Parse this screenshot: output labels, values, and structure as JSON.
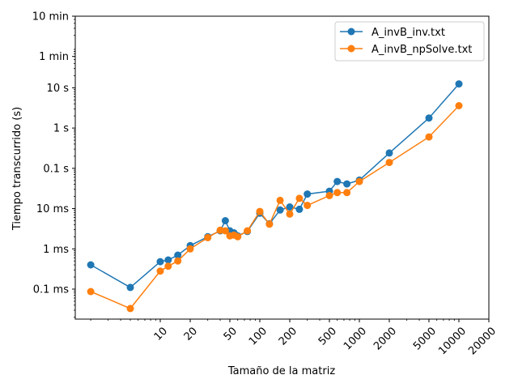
{
  "chart_data": {
    "type": "line",
    "title": "",
    "xlabel": "Tamaño de la matriz",
    "ylabel": "Tiempo transcurrido (s)",
    "x_scale": "log",
    "y_scale": "log",
    "xlim": [
      1.4,
      20000
    ],
    "ylim": [
      1.8e-05,
      600
    ],
    "x_ticks": [
      {
        "value": 10,
        "label": "10"
      },
      {
        "value": 20,
        "label": "20"
      },
      {
        "value": 50,
        "label": "50"
      },
      {
        "value": 100,
        "label": "100"
      },
      {
        "value": 200,
        "label": "200"
      },
      {
        "value": 500,
        "label": "500"
      },
      {
        "value": 1000,
        "label": "1000"
      },
      {
        "value": 2000,
        "label": "2000"
      },
      {
        "value": 5000,
        "label": "5000"
      },
      {
        "value": 10000,
        "label": "10000"
      },
      {
        "value": 20000,
        "label": "20000"
      }
    ],
    "y_ticks": [
      {
        "value": 0.0001,
        "label": "0.1 ms"
      },
      {
        "value": 0.001,
        "label": "1 ms"
      },
      {
        "value": 0.01,
        "label": "10 ms"
      },
      {
        "value": 0.1,
        "label": "0.1 s"
      },
      {
        "value": 1,
        "label": "1 s"
      },
      {
        "value": 10,
        "label": "10 s"
      },
      {
        "value": 60,
        "label": "1 min"
      },
      {
        "value": 600,
        "label": "10 min"
      }
    ],
    "grid": false,
    "legend_position": "top-right",
    "series": [
      {
        "name": "A_invB_inv.txt",
        "color": "#1f77b4",
        "x": [
          2,
          5,
          10,
          12,
          15,
          20,
          30,
          40,
          45,
          50,
          55,
          60,
          75,
          100,
          125,
          160,
          200,
          250,
          300,
          500,
          600,
          750,
          1000,
          2000,
          5000,
          10000
        ],
        "y": [
          0.0004,
          0.00011,
          0.00048,
          0.00053,
          0.0007,
          0.0012,
          0.002,
          0.0028,
          0.005,
          0.0028,
          0.0025,
          0.0021,
          0.0027,
          0.0077,
          0.0042,
          0.0092,
          0.011,
          0.0096,
          0.023,
          0.027,
          0.047,
          0.041,
          0.051,
          0.24,
          1.78,
          12.5
        ]
      },
      {
        "name": "A_invB_npSolve.txt",
        "color": "#ff7f0e",
        "x": [
          2,
          5,
          10,
          12,
          15,
          20,
          30,
          40,
          45,
          50,
          55,
          60,
          75,
          100,
          125,
          160,
          200,
          250,
          300,
          500,
          600,
          750,
          1000,
          2000,
          5000,
          10000
        ],
        "y": [
          8.7e-05,
          3.3e-05,
          0.00028,
          0.00037,
          0.0005,
          0.001,
          0.0019,
          0.0029,
          0.0028,
          0.0021,
          0.0022,
          0.002,
          0.0028,
          0.0085,
          0.0041,
          0.016,
          0.0073,
          0.018,
          0.012,
          0.021,
          0.025,
          0.025,
          0.047,
          0.14,
          0.6,
          3.6
        ]
      }
    ]
  }
}
